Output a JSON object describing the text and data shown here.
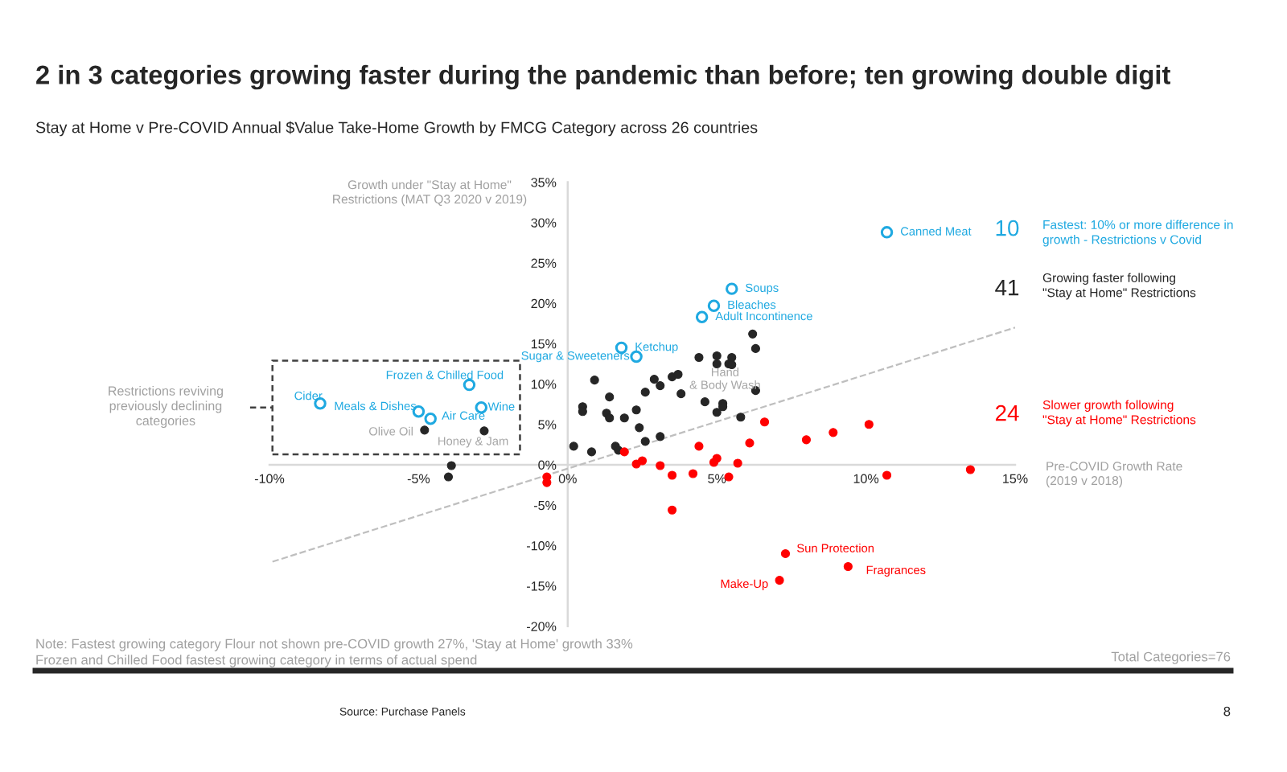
{
  "chart_data": {
    "type": "scatter",
    "title": "2 in 3 categories growing faster during the pandemic than before; ten growing double digit",
    "subtitle": "Stay at Home v Pre-COVID Annual $Value Take-Home Growth by FMCG Category across 26 countries",
    "xlabel": "Pre-COVID Growth Rate\n(2019 v 2018)",
    "ylabel": "Growth under \"Stay at Home\"\nRestrictions (MAT Q3 2020 v 2019)",
    "xlim": [
      -10,
      15
    ],
    "ylim": [
      -20,
      35
    ],
    "xticks": [
      {
        "value": -10,
        "label": "-10%"
      },
      {
        "value": -5,
        "label": "-5%"
      },
      {
        "value": 0,
        "label": "0%"
      },
      {
        "value": 5,
        "label": "5%"
      },
      {
        "value": 10,
        "label": "10%"
      },
      {
        "value": 15,
        "label": "15%"
      }
    ],
    "yticks": [
      {
        "value": -20,
        "label": "-20%"
      },
      {
        "value": -15,
        "label": "-15%"
      },
      {
        "value": -10,
        "label": "-10%"
      },
      {
        "value": -5,
        "label": "-5%"
      },
      {
        "value": 0,
        "label": "0%"
      },
      {
        "value": 5,
        "label": "5%"
      },
      {
        "value": 10,
        "label": "10%"
      },
      {
        "value": 15,
        "label": "15%"
      },
      {
        "value": 20,
        "label": "20%"
      },
      {
        "value": 25,
        "label": "25%"
      },
      {
        "value": 30,
        "label": "30%"
      },
      {
        "value": 35,
        "label": "35%"
      }
    ],
    "series": [
      {
        "name": "Fastest: 10% or more difference in\ngrowth - Restrictions v Covid",
        "color": "#1fa9e1",
        "marker": "circle",
        "x": [
          10.7,
          5.5,
          4.9,
          4.5,
          1.8,
          2.3,
          -3.3,
          -8.3,
          -5.0,
          -4.6,
          -2.9
        ],
        "values": [
          28.8,
          21.8,
          19.7,
          18.3,
          14.5,
          13.4,
          9.9,
          7.6,
          6.6,
          5.7,
          7.1
        ]
      },
      {
        "name": "Growing faster following\n\"Stay at Home\" Restrictions",
        "color": "#262626",
        "marker": "circle",
        "x": [
          -4.8,
          -2.8,
          -3.9,
          -4.0,
          6.2,
          6.3,
          4.4,
          5.0,
          5.0,
          5.5,
          5.4,
          5.5,
          0.9,
          2.9,
          3.5,
          3.7,
          3.1,
          2.6,
          3.8,
          1.4,
          0.5,
          0.5,
          1.3,
          1.4,
          1.9,
          2.3,
          2.4,
          4.6,
          5.2,
          5.2,
          5.0,
          6.3,
          5.8,
          2.6,
          3.1,
          1.6,
          1.7,
          0.2,
          0.8
        ],
        "values": [
          4.3,
          4.2,
          -0.1,
          -1.5,
          16.2,
          14.4,
          13.3,
          13.5,
          12.5,
          13.3,
          12.5,
          12.4,
          10.5,
          10.6,
          10.9,
          11.2,
          9.8,
          9.0,
          8.8,
          8.4,
          7.2,
          6.6,
          6.4,
          5.8,
          5.8,
          6.8,
          4.6,
          7.8,
          7.6,
          7.2,
          6.5,
          9.2,
          5.9,
          2.9,
          3.5,
          2.3,
          1.8,
          2.3,
          1.6
        ]
      },
      {
        "name": "Slower growth following\n\"Stay at Home\" Restrictions",
        "color": "#ff0000",
        "marker": "circle",
        "x": [
          -0.7,
          -0.7,
          1.9,
          2.3,
          2.5,
          3.1,
          3.5,
          4.2,
          3.5,
          4.9,
          5.0,
          5.4,
          5.7,
          10.7,
          13.5,
          7.3,
          9.4,
          7.1,
          4.4,
          6.1,
          6.6,
          8.0,
          8.9,
          10.1
        ],
        "values": [
          -1.5,
          -2.2,
          1.6,
          0.1,
          0.5,
          -0.1,
          -1.3,
          -1.1,
          -5.6,
          0.3,
          0.8,
          -1.5,
          0.2,
          -1.3,
          -0.6,
          -11.0,
          -12.6,
          -14.3,
          2.3,
          2.7,
          5.3,
          3.1,
          4.0,
          5.0
        ]
      },
      {
        "type": "line",
        "color": "#bfbfbf",
        "line_style": "dashed",
        "x": [
          -9.9,
          15
        ],
        "values": [
          -12,
          17
        ]
      }
    ],
    "annotations": [
      {
        "text": "Canned Meat",
        "x": 10.7,
        "y": 28.8
      },
      {
        "text": "Soups",
        "x": 5.5,
        "y": 21.8
      },
      {
        "text": "Bleaches",
        "x": 4.9,
        "y": 19.7
      },
      {
        "text": "Adult Incontinence",
        "x": 4.5,
        "y": 18.3
      },
      {
        "text": "Ketchup",
        "x": 1.8,
        "y": 14.5
      },
      {
        "text": "Sugar & Sweeteners",
        "x": 2.3,
        "y": 13.4
      },
      {
        "text": "Frozen & Chilled Food",
        "x": -3.3,
        "y": 9.9
      },
      {
        "text": "Cider",
        "x": -8.3,
        "y": 7.6
      },
      {
        "text": "Meals & Dishes",
        "x": -5.0,
        "y": 6.6
      },
      {
        "text": "Air Care",
        "x": -4.6,
        "y": 5.7
      },
      {
        "text": "Wine",
        "x": -2.9,
        "y": 7.1
      },
      {
        "text": "Olive Oil",
        "x": -4.8,
        "y": 4.3
      },
      {
        "text": "Honey & Jam",
        "x": -2.8,
        "y": 4.2
      },
      {
        "text": "Hand\n& Body Wash",
        "x": 4.6,
        "y": 7.8
      },
      {
        "text": "Sun Protection",
        "x": 7.3,
        "y": -11.0
      },
      {
        "text": "Fragrances",
        "x": 9.4,
        "y": -12.6
      },
      {
        "text": "Make-Up",
        "x": 7.1,
        "y": -14.3
      },
      "Restrictions reviving\npreviously declining\ncategories",
      "10",
      "41",
      "24",
      "Note: Fastest growing category Flour not shown pre-COVID growth 27%, 'Stay at Home' growth 33%",
      "Frozen and Chilled Food fastest growing category in terms of actual spend",
      "Total Categories=76",
      "Source: Purchase Panels",
      "8"
    ]
  }
}
